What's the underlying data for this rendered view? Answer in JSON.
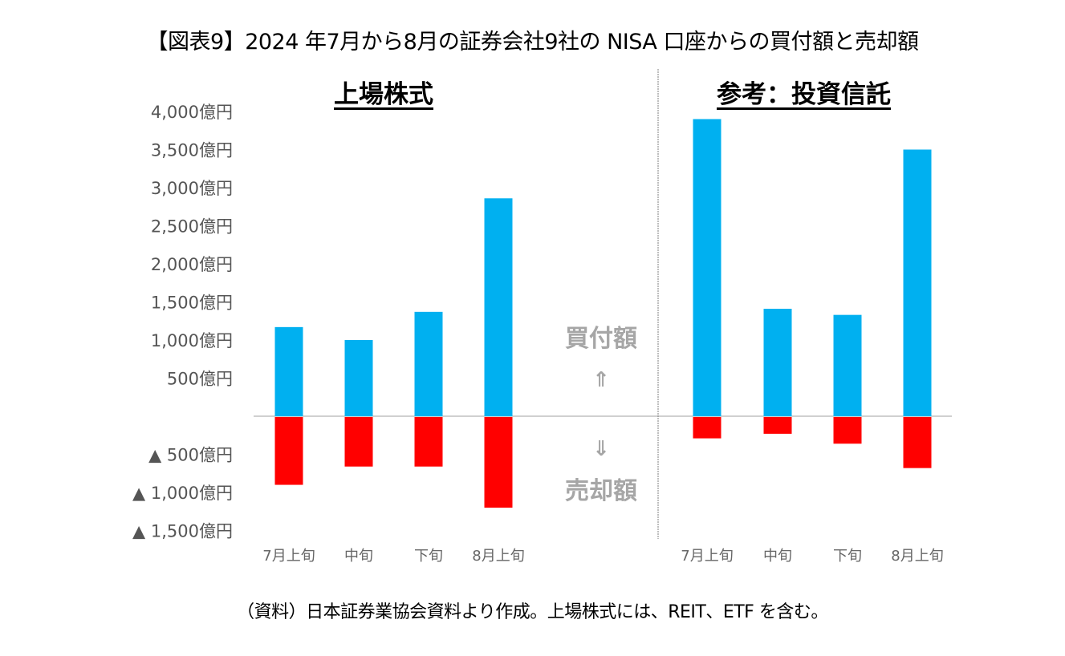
{
  "title": "【図表9】2024 年7月から8月の証券会社9社の NISA 口座からの買付額と売却額",
  "footer": "（資料）日本証券業協会資料より作成。上場株式には、REIT、ETF を含む。",
  "annotations": {
    "buy_label": "買付額",
    "buy_arrow": "⇑",
    "sell_arrow": "⇓",
    "sell_label": "売却額"
  },
  "colors": {
    "buy": "#00b0f0",
    "sell": "#ff0000",
    "zero_line": "#d0d0d0",
    "divider": "#7f7f7f"
  },
  "chart_data": [
    {
      "type": "bar",
      "title": "上場株式",
      "unit": "億円",
      "categories": [
        "7月上旬",
        "中旬",
        "下旬",
        "8月上旬"
      ],
      "series": [
        {
          "name": "買付額",
          "values": [
            1170,
            1000,
            1370,
            2860
          ]
        },
        {
          "name": "売却額",
          "values": [
            -890,
            -650,
            -650,
            -1190
          ]
        }
      ],
      "ylim": [
        -1500,
        4000
      ],
      "yticks": [
        {
          "value": 4000,
          "label": "4,000億円"
        },
        {
          "value": 3500,
          "label": "3,500億円"
        },
        {
          "value": 3000,
          "label": "3,000億円"
        },
        {
          "value": 2500,
          "label": "2,500億円"
        },
        {
          "value": 2000,
          "label": "2,000億円"
        },
        {
          "value": 1500,
          "label": "1,500億円"
        },
        {
          "value": 1000,
          "label": "1,000億円"
        },
        {
          "value": 500,
          "label": "500億円"
        },
        {
          "value": -500,
          "label": "▲ 500億円"
        },
        {
          "value": -1000,
          "label": "▲ 1,000億円"
        },
        {
          "value": -1500,
          "label": "▲ 1,500億円"
        }
      ],
      "grid": false,
      "legend": "none"
    },
    {
      "type": "bar",
      "title": "参考：投資信託",
      "unit": "億円",
      "categories": [
        "7月上旬",
        "中旬",
        "下旬",
        "8月上旬"
      ],
      "series": [
        {
          "name": "買付額",
          "values": [
            3900,
            1410,
            1330,
            3500
          ]
        },
        {
          "name": "売却額",
          "values": [
            -280,
            -220,
            -350,
            -670
          ]
        }
      ],
      "ylim": [
        -1500,
        4000
      ],
      "grid": false,
      "legend": "none"
    }
  ]
}
